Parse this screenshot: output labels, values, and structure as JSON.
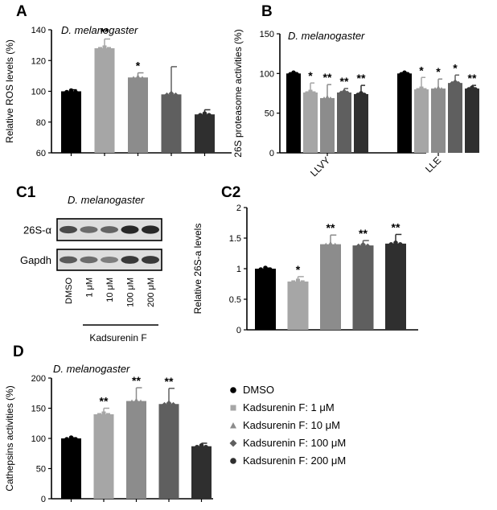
{
  "figure": {
    "colors": {
      "DMSO": "#000000",
      "F1": "#a6a6a6",
      "F10": "#8c8c8c",
      "F100": "#5f5f5f",
      "F200": "#2f2f2f"
    },
    "species": "D. melanogaster",
    "legend": {
      "items": [
        {
          "label": "DMSO",
          "marker": "circle",
          "color_key": "DMSO"
        },
        {
          "label": "Kadsurenin F: 1 μM",
          "marker": "square",
          "color_key": "F1"
        },
        {
          "label": "Kadsurenin F: 10 μM",
          "marker": "triangle",
          "color_key": "F10"
        },
        {
          "label": "Kadsurenin F: 100 μM",
          "marker": "diamond",
          "color_key": "F100"
        },
        {
          "label": "Kadsurenin F: 200 μM",
          "marker": "circle",
          "color_key": "F200"
        }
      ]
    },
    "blot": {
      "label": "C1",
      "title": "D. melanogaster",
      "rows": [
        "26S-α",
        "Gapdh"
      ],
      "lanes": [
        "DMSO",
        "1 μM",
        "10 μM",
        "100 μM",
        "200 μM"
      ],
      "band_intensity": {
        "26S-α": [
          0.75,
          0.55,
          0.6,
          0.95,
          0.95
        ],
        "Gapdh": [
          0.65,
          0.55,
          0.45,
          0.85,
          0.85
        ]
      },
      "treatment_label": "Kadsurenin F"
    }
  },
  "chart_data": [
    {
      "id": "A",
      "type": "bar",
      "panel_label": "A",
      "title": "D. melanogaster",
      "ylabel": "Relative ROS levels (%)",
      "ylim": [
        60,
        140
      ],
      "yticks": [
        60,
        80,
        100,
        120,
        140
      ],
      "categories": [
        "DMSO",
        "Kadsurenin F: 1 μM",
        "Kadsurenin F: 10 μM",
        "Kadsurenin F: 100 μM",
        "Kadsurenin F: 200 μM"
      ],
      "values": [
        100,
        128,
        109,
        98,
        85
      ],
      "errors": [
        1,
        6,
        3,
        18,
        3
      ],
      "significance": [
        "",
        "**",
        "*",
        "",
        ""
      ]
    },
    {
      "id": "B",
      "type": "bar",
      "panel_label": "B",
      "title": "D. melanogaster",
      "ylabel": "26S proteasome activities (%)",
      "ylim": [
        0,
        150
      ],
      "yticks": [
        0,
        50,
        100,
        150
      ],
      "groups": [
        "LLVY",
        "LLE"
      ],
      "series": [
        {
          "values": [
            100,
            100
          ],
          "errors": [
            1,
            1
          ],
          "significance": [
            "",
            ""
          ]
        },
        {
          "values": [
            76,
            80
          ],
          "errors": [
            12,
            15
          ],
          "significance": [
            "*",
            "*"
          ]
        },
        {
          "values": [
            69,
            81
          ],
          "errors": [
            17,
            12
          ],
          "significance": [
            "**",
            "*"
          ]
        },
        {
          "values": [
            76,
            88
          ],
          "errors": [
            5,
            10
          ],
          "significance": [
            "**",
            "*"
          ]
        },
        {
          "values": [
            74,
            81
          ],
          "errors": [
            11,
            4
          ],
          "significance": [
            "**",
            "**"
          ]
        }
      ]
    },
    {
      "id": "C2",
      "type": "bar",
      "panel_label": "C2",
      "ylabel": "Relative 26S-a levels",
      "ylim": [
        0.0,
        2.0
      ],
      "yticks": [
        0.0,
        0.5,
        1.0,
        1.5,
        2.0
      ],
      "categories": [
        "DMSO",
        "Kadsurenin F: 1 μM",
        "Kadsurenin F: 10 μM",
        "Kadsurenin F: 100 μM",
        "Kadsurenin F: 200 μM"
      ],
      "values": [
        1.0,
        0.79,
        1.4,
        1.38,
        1.41
      ],
      "errors": [
        0.01,
        0.08,
        0.15,
        0.08,
        0.15
      ],
      "significance": [
        "",
        "*",
        "**",
        "**",
        "**"
      ]
    },
    {
      "id": "D",
      "type": "bar",
      "panel_label": "D",
      "title": "D. melanogaster",
      "ylabel": "Cathepsins activities (%)",
      "ylim": [
        0,
        200
      ],
      "yticks": [
        0,
        50,
        100,
        150,
        200
      ],
      "categories": [
        "DMSO",
        "Kadsurenin F: 1 μM",
        "Kadsurenin F: 10 μM",
        "Kadsurenin F: 100 μM",
        "Kadsurenin F: 200 μM"
      ],
      "values": [
        100,
        140,
        162,
        157,
        87
      ],
      "errors": [
        1,
        10,
        22,
        26,
        5
      ],
      "significance": [
        "",
        "**",
        "**",
        "**",
        ""
      ]
    }
  ]
}
